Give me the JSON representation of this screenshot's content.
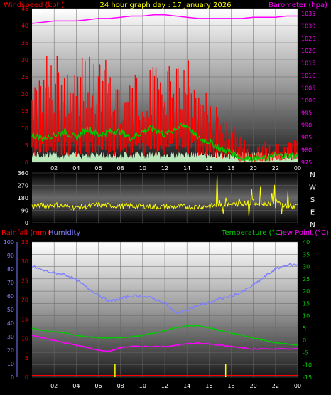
{
  "title": "24 hour graph day : 17 January 2026",
  "colors": {
    "background": "#000000",
    "windspeed": "#ff0000",
    "gust": "#ff0000",
    "avg_wind": "#00cc00",
    "calm": "#ccffcc",
    "barometer": "#ff00ff",
    "direction": "#ffff00",
    "rainfall": "#ff0000",
    "humidity": "#8080ff",
    "temperature": "#00cc00",
    "dewpoint": "#ff00ff",
    "rain_bars": "#ffff00",
    "grid": "#666666"
  },
  "x_ticks": [
    "02",
    "04",
    "06",
    "08",
    "10",
    "12",
    "14",
    "16",
    "18",
    "20",
    "22",
    "00"
  ],
  "chart_data": [
    {
      "type": "line",
      "name": "wind-barometer",
      "labels": {
        "left": "Windspeed (kph)",
        "right": "Barometer (hpa)"
      },
      "left_axis": {
        "ticks": [
          0,
          5,
          10,
          15,
          20,
          25,
          30,
          35,
          40,
          45
        ],
        "range": [
          0,
          45
        ]
      },
      "right_axis": {
        "ticks": [
          975,
          980,
          985,
          990,
          995,
          1000,
          1005,
          1010,
          1015,
          1020,
          1025,
          1030,
          1035
        ],
        "range": [
          975,
          1037
        ]
      },
      "hours": [
        0,
        1,
        2,
        3,
        4,
        5,
        6,
        7,
        8,
        9,
        10,
        11,
        12,
        13,
        14,
        15,
        16,
        17,
        18,
        19,
        20,
        21,
        22,
        23,
        24
      ],
      "series": [
        {
          "name": "Windspeed (kph)",
          "values": [
            20,
            24,
            26,
            24,
            22,
            26,
            22,
            26,
            19,
            20,
            20,
            22,
            22,
            24,
            24,
            18,
            15,
            12,
            10,
            6,
            3,
            5,
            5,
            5,
            5
          ]
        },
        {
          "name": "Average",
          "values": [
            8,
            7,
            8,
            9,
            7,
            10,
            8,
            9,
            9,
            7,
            9,
            10,
            8,
            10,
            11,
            7,
            6,
            4,
            3,
            1,
            1,
            1,
            2,
            2,
            2
          ]
        },
        {
          "name": "Barometer (hpa)",
          "values": [
            1031,
            1031.5,
            1032,
            1032,
            1032,
            1032.5,
            1033,
            1033,
            1033.5,
            1034,
            1034,
            1034.5,
            1034.5,
            1034,
            1033.5,
            1033,
            1033,
            1033,
            1033,
            1033,
            1033.5,
            1033.5,
            1033.5,
            1034,
            1034
          ]
        }
      ]
    },
    {
      "type": "scatter",
      "name": "wind-direction",
      "left_axis": {
        "ticks": [
          0,
          90,
          180,
          270,
          360
        ],
        "range": [
          0,
          360
        ]
      },
      "compass": [
        "N",
        "W",
        "S",
        "E",
        "N"
      ],
      "hours": [
        0,
        2,
        4,
        6,
        8,
        10,
        12,
        14,
        16,
        17,
        18,
        19,
        20,
        21,
        22,
        23,
        24
      ],
      "values": [
        120,
        130,
        110,
        130,
        120,
        120,
        115,
        115,
        120,
        130,
        130,
        140,
        150,
        140,
        150,
        120,
        120
      ]
    },
    {
      "type": "line",
      "name": "rain-humidity-temp",
      "labels": {
        "rainfall": "Rainfall (mm)",
        "humidity": "Humidity",
        "temperature": "Temperature (°C)",
        "dewpoint": "Dew Point (°C)"
      },
      "humidity_axis": {
        "ticks": [
          0,
          10,
          20,
          30,
          40,
          50,
          60,
          70,
          80,
          90,
          100
        ],
        "range": [
          0,
          100
        ]
      },
      "rain_axis": {
        "ticks": [
          0,
          5,
          10,
          15,
          20,
          25,
          30,
          35
        ],
        "range": [
          0,
          35
        ]
      },
      "temp_axis": {
        "ticks": [
          -15,
          -10,
          -5,
          0,
          5,
          10,
          15,
          20,
          25,
          30,
          35,
          40
        ],
        "range": [
          -15,
          40
        ]
      },
      "hours": [
        0,
        1,
        2,
        3,
        4,
        5,
        6,
        7,
        8,
        9,
        10,
        11,
        12,
        13,
        14,
        15,
        16,
        17,
        18,
        19,
        20,
        21,
        22,
        23,
        24
      ],
      "series": [
        {
          "name": "Humidity",
          "values": [
            82,
            79,
            77,
            76,
            72,
            66,
            61,
            56,
            58,
            60,
            60,
            58,
            55,
            47,
            50,
            53,
            55,
            58,
            60,
            63,
            68,
            74,
            80,
            83,
            83
          ]
        },
        {
          "name": "Temperature (°C)",
          "values": [
            5,
            4,
            3.5,
            3,
            2,
            1.5,
            1,
            1,
            1,
            1.5,
            2,
            3,
            4,
            5,
            6,
            6,
            5,
            4,
            3,
            2,
            1,
            0,
            -1,
            -1.5,
            -2
          ]
        },
        {
          "name": "Dew Point (°C)",
          "values": [
            2,
            1,
            0,
            -1,
            -2,
            -3,
            -4,
            -4.5,
            -3,
            -2.5,
            -2.5,
            -2.5,
            -2.5,
            -2,
            -1.5,
            -1,
            -1.5,
            -2,
            -2.5,
            -3,
            -3.5,
            -3.5,
            -3.5,
            -3.5,
            -3.5
          ]
        },
        {
          "name": "Rainfall (mm)",
          "values": [
            0,
            0,
            0,
            0,
            0,
            0,
            0,
            0,
            0,
            0,
            0,
            0,
            0,
            0,
            0,
            0,
            0,
            0,
            0,
            0,
            0,
            0,
            0,
            0,
            0
          ]
        }
      ],
      "rain_markers": [
        7.5,
        17.5
      ]
    }
  ]
}
